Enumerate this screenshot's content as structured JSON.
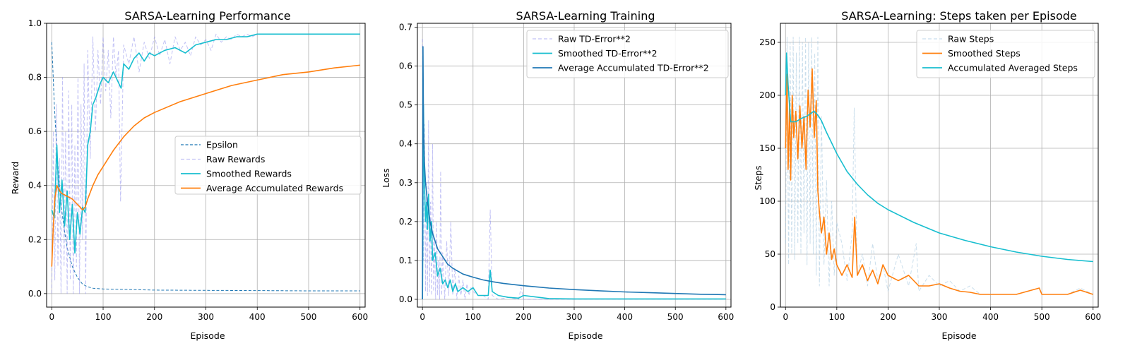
{
  "chart_data": [
    {
      "type": "line",
      "title": "SARSA-Learning Performance",
      "xlabel": "Episode",
      "ylabel": "Reward",
      "xlim": [
        -10,
        610
      ],
      "ylim": [
        -0.05,
        1.0
      ],
      "xticks": [
        0,
        100,
        200,
        300,
        400,
        500,
        600
      ],
      "yticks": [
        0.0,
        0.2,
        0.4,
        0.6,
        0.8,
        1.0
      ],
      "tick_decimals": 1,
      "grid": true,
      "legend_position": "center-right",
      "series": [
        {
          "name": "Epsilon",
          "color": "#1f77b4",
          "style": "dashed",
          "x": [
            0,
            5,
            10,
            15,
            20,
            25,
            30,
            40,
            50,
            60,
            70,
            80,
            100,
            150,
            200,
            300,
            400,
            500,
            600
          ],
          "y": [
            0.93,
            0.7,
            0.53,
            0.4,
            0.3,
            0.23,
            0.17,
            0.1,
            0.06,
            0.035,
            0.025,
            0.02,
            0.017,
            0.015,
            0.013,
            0.012,
            0.011,
            0.01,
            0.01
          ]
        },
        {
          "name": "Raw Rewards",
          "color": "#9999ee",
          "style": "dashed-faint",
          "x": [
            0,
            3,
            6,
            9,
            12,
            15,
            18,
            21,
            24,
            27,
            30,
            33,
            36,
            39,
            42,
            45,
            48,
            51,
            54,
            57,
            60,
            63,
            66,
            70,
            75,
            80,
            85,
            90,
            95,
            100,
            105,
            110,
            115,
            120,
            125,
            130,
            134,
            140,
            150,
            160,
            170,
            180,
            190,
            200,
            210,
            220,
            230,
            240,
            250,
            260,
            270,
            280,
            290,
            300,
            310,
            320,
            330,
            340,
            350,
            360,
            370,
            380,
            390,
            400,
            450,
            500,
            550,
            600
          ],
          "y": [
            0.0,
            0.6,
            0.05,
            0.7,
            0.1,
            0.5,
            0.0,
            0.8,
            0.1,
            0.6,
            0.0,
            0.75,
            0.05,
            0.7,
            0.0,
            0.55,
            0.1,
            0.8,
            0.0,
            0.7,
            0.2,
            0.85,
            0.0,
            0.9,
            0.5,
            0.95,
            0.6,
            0.9,
            0.7,
            0.95,
            0.75,
            0.9,
            0.65,
            0.95,
            0.8,
            0.9,
            0.34,
            0.92,
            0.85,
            0.95,
            0.82,
            0.93,
            0.87,
            0.95,
            0.88,
            0.94,
            0.85,
            0.95,
            0.9,
            0.93,
            0.88,
            0.95,
            0.92,
            0.94,
            0.9,
            0.96,
            0.93,
            0.95,
            0.94,
            0.96,
            0.95,
            0.96,
            0.95,
            0.96,
            0.96,
            0.96,
            0.96,
            0.96
          ]
        },
        {
          "name": "Smoothed Rewards",
          "color": "#17becf",
          "style": "solid",
          "x": [
            0,
            5,
            10,
            15,
            20,
            25,
            30,
            35,
            40,
            45,
            50,
            55,
            60,
            65,
            70,
            75,
            80,
            85,
            90,
            95,
            100,
            110,
            120,
            130,
            135,
            140,
            150,
            160,
            170,
            180,
            190,
            200,
            220,
            240,
            260,
            280,
            300,
            320,
            340,
            360,
            380,
            400,
            450,
            500,
            550,
            600
          ],
          "y": [
            0.31,
            0.28,
            0.55,
            0.3,
            0.42,
            0.25,
            0.38,
            0.2,
            0.33,
            0.15,
            0.3,
            0.22,
            0.32,
            0.3,
            0.55,
            0.6,
            0.7,
            0.72,
            0.75,
            0.78,
            0.8,
            0.78,
            0.82,
            0.78,
            0.76,
            0.85,
            0.83,
            0.87,
            0.89,
            0.86,
            0.89,
            0.88,
            0.9,
            0.91,
            0.89,
            0.92,
            0.93,
            0.94,
            0.94,
            0.95,
            0.95,
            0.96,
            0.96,
            0.96,
            0.96,
            0.96
          ]
        },
        {
          "name": "Average Accumulated Rewards",
          "color": "#ff7f0e",
          "style": "solid",
          "x": [
            0,
            3,
            6,
            10,
            15,
            20,
            30,
            40,
            50,
            55,
            60,
            65,
            70,
            80,
            90,
            100,
            120,
            140,
            160,
            180,
            200,
            250,
            300,
            350,
            400,
            450,
            500,
            550,
            600
          ],
          "y": [
            0.1,
            0.25,
            0.35,
            0.4,
            0.38,
            0.37,
            0.36,
            0.35,
            0.33,
            0.32,
            0.31,
            0.32,
            0.35,
            0.4,
            0.44,
            0.47,
            0.53,
            0.58,
            0.62,
            0.65,
            0.67,
            0.71,
            0.74,
            0.77,
            0.79,
            0.81,
            0.82,
            0.835,
            0.845
          ]
        }
      ]
    },
    {
      "type": "line",
      "title": "SARSA-Learning Training",
      "xlabel": "Episode",
      "ylabel": "Loss",
      "xlim": [
        -10,
        610
      ],
      "ylim": [
        -0.02,
        0.71
      ],
      "xticks": [
        0,
        100,
        200,
        300,
        400,
        500,
        600
      ],
      "yticks": [
        0.0,
        0.1,
        0.2,
        0.3,
        0.4,
        0.5,
        0.6,
        0.7
      ],
      "tick_decimals": 1,
      "grid": true,
      "legend_position": "top-right",
      "series": [
        {
          "name": "Raw TD-Error**2",
          "color": "#9999ee",
          "style": "dashed-faint",
          "x": [
            0,
            2,
            4,
            6,
            8,
            10,
            12,
            14,
            16,
            18,
            20,
            22,
            24,
            26,
            28,
            30,
            32,
            34,
            36,
            38,
            40,
            44,
            48,
            52,
            56,
            60,
            64,
            68,
            72,
            76,
            80,
            84,
            88,
            92,
            96,
            100,
            110,
            120,
            130,
            134,
            138,
            150,
            170,
            190,
            195,
            200,
            250,
            300,
            400,
            500,
            600
          ],
          "y": [
            0.67,
            0.1,
            0.45,
            0.02,
            0.3,
            0.01,
            0.46,
            0.02,
            0.25,
            0.01,
            0.4,
            0.02,
            0.15,
            0.0,
            0.2,
            0.01,
            0.1,
            0.0,
            0.33,
            0.01,
            0.12,
            0.0,
            0.15,
            0.01,
            0.2,
            0.01,
            0.08,
            0.0,
            0.06,
            0.01,
            0.05,
            0.0,
            0.04,
            0.01,
            0.03,
            0.02,
            0.01,
            0.01,
            0.0,
            0.23,
            0.01,
            0.0,
            0.005,
            0.0,
            0.03,
            0.0,
            0.0,
            0.0,
            0.0,
            0.0,
            0.0
          ]
        },
        {
          "name": "Smoothed TD-Error**2",
          "color": "#17becf",
          "style": "solid",
          "x": [
            0,
            2,
            4,
            6,
            8,
            10,
            12,
            15,
            18,
            20,
            25,
            30,
            35,
            40,
            45,
            50,
            55,
            60,
            65,
            70,
            80,
            90,
            100,
            110,
            120,
            130,
            134,
            138,
            150,
            170,
            190,
            200,
            250,
            300,
            400,
            500,
            600
          ],
          "y": [
            0.0,
            0.5,
            0.3,
            0.2,
            0.25,
            0.18,
            0.27,
            0.15,
            0.2,
            0.1,
            0.12,
            0.06,
            0.08,
            0.04,
            0.05,
            0.03,
            0.05,
            0.02,
            0.04,
            0.02,
            0.03,
            0.02,
            0.03,
            0.01,
            0.01,
            0.01,
            0.075,
            0.02,
            0.01,
            0.005,
            0.003,
            0.01,
            0.002,
            0.001,
            0.001,
            0.001,
            0.001
          ]
        },
        {
          "name": "Average Accumulated TD-Error**2",
          "color": "#1f77b4",
          "style": "solid",
          "x": [
            0,
            1,
            2,
            4,
            6,
            10,
            15,
            20,
            30,
            40,
            50,
            60,
            80,
            100,
            120,
            140,
            160,
            200,
            250,
            300,
            350,
            400,
            450,
            500,
            550,
            600
          ],
          "y": [
            0.0,
            0.65,
            0.45,
            0.35,
            0.3,
            0.25,
            0.2,
            0.17,
            0.13,
            0.11,
            0.09,
            0.08,
            0.065,
            0.057,
            0.05,
            0.045,
            0.041,
            0.035,
            0.029,
            0.025,
            0.022,
            0.019,
            0.017,
            0.015,
            0.013,
            0.012
          ]
        }
      ]
    },
    {
      "type": "line",
      "title": "SARSA-Learning: Steps taken per Episode",
      "xlabel": "Episode",
      "ylabel": "Steps",
      "xlim": [
        -10,
        610
      ],
      "ylim": [
        0,
        268
      ],
      "xticks": [
        0,
        100,
        200,
        300,
        400,
        500,
        600
      ],
      "yticks": [
        0,
        50,
        100,
        150,
        200,
        250
      ],
      "tick_decimals": 0,
      "grid": true,
      "legend_position": "top-right",
      "series": [
        {
          "name": "Raw Steps",
          "color": "#a6c8e0",
          "style": "dashed-faint",
          "x": [
            0,
            3,
            6,
            9,
            12,
            15,
            18,
            21,
            24,
            27,
            30,
            33,
            36,
            39,
            42,
            45,
            48,
            51,
            54,
            57,
            60,
            63,
            66,
            70,
            75,
            80,
            85,
            90,
            95,
            100,
            110,
            120,
            130,
            134,
            140,
            150,
            160,
            170,
            180,
            190,
            200,
            220,
            240,
            255,
            260,
            280,
            300,
            320,
            340,
            360,
            380,
            400,
            450,
            495,
            500,
            550,
            575,
            600
          ],
          "y": [
            60,
            255,
            40,
            250,
            50,
            255,
            45,
            240,
            60,
            255,
            50,
            250,
            70,
            255,
            40,
            250,
            60,
            255,
            50,
            240,
            30,
            255,
            20,
            180,
            40,
            120,
            20,
            100,
            30,
            80,
            60,
            25,
            70,
            188,
            30,
            50,
            20,
            60,
            25,
            40,
            15,
            50,
            20,
            60,
            15,
            30,
            20,
            25,
            15,
            20,
            12,
            12,
            12,
            18,
            12,
            12,
            18,
            12
          ]
        },
        {
          "name": "Smoothed Steps",
          "color": "#ff7f0e",
          "style": "solid",
          "x": [
            0,
            3,
            5,
            8,
            10,
            13,
            16,
            20,
            24,
            28,
            32,
            36,
            40,
            44,
            48,
            52,
            56,
            60,
            63,
            66,
            70,
            75,
            80,
            85,
            90,
            95,
            100,
            110,
            120,
            130,
            135,
            140,
            150,
            160,
            170,
            180,
            190,
            200,
            220,
            240,
            260,
            280,
            300,
            320,
            340,
            360,
            380,
            400,
            450,
            495,
            500,
            550,
            575,
            600
          ],
          "y": [
            150,
            220,
            130,
            195,
            120,
            200,
            160,
            185,
            140,
            190,
            150,
            180,
            130,
            205,
            170,
            225,
            160,
            195,
            110,
            90,
            70,
            85,
            50,
            70,
            45,
            55,
            40,
            30,
            40,
            28,
            85,
            30,
            40,
            25,
            35,
            22,
            40,
            30,
            25,
            30,
            20,
            20,
            22,
            18,
            15,
            14,
            12,
            12,
            12,
            18,
            12,
            12,
            16,
            12
          ]
        },
        {
          "name": "Accumulated Averaged Steps",
          "color": "#17becf",
          "style": "solid",
          "x": [
            0,
            2,
            5,
            10,
            20,
            30,
            40,
            50,
            55,
            60,
            65,
            70,
            80,
            90,
            100,
            120,
            140,
            160,
            180,
            200,
            250,
            300,
            350,
            400,
            450,
            500,
            550,
            600
          ],
          "y": [
            200,
            240,
            210,
            175,
            175,
            178,
            180,
            183,
            185,
            183,
            180,
            176,
            165,
            155,
            145,
            128,
            116,
            106,
            98,
            92,
            80,
            70,
            63,
            57,
            52,
            48,
            45,
            43
          ]
        }
      ]
    }
  ]
}
